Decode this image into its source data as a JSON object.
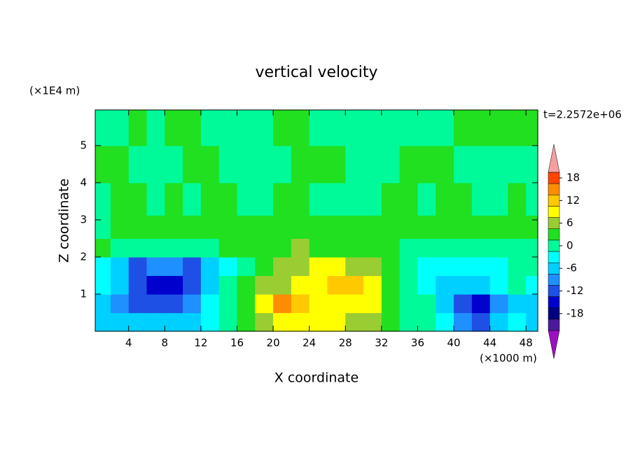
{
  "chart_data": {
    "type": "contourf",
    "title": "vertical velocity",
    "xlabel": "X coordinate",
    "ylabel": "Z coordinate",
    "x_unit": "(×1000 m)",
    "y_unit": "(×1E4 m)",
    "annotation": "t=2.2572e+06",
    "xlim": [
      0.3,
      49.3
    ],
    "ylim": [
      0,
      5.96
    ],
    "xticks": [
      4,
      8,
      12,
      16,
      20,
      24,
      28,
      32,
      36,
      40,
      44,
      48
    ],
    "yticks": [
      1,
      2,
      3,
      4,
      5
    ],
    "x": [
      1,
      3,
      5,
      7,
      9,
      11,
      13,
      15,
      17,
      19,
      21,
      23,
      25,
      27,
      29,
      31,
      33,
      35,
      37,
      39,
      41,
      43,
      45,
      47,
      49
    ],
    "y": [
      0.25,
      0.75,
      1.25,
      1.75,
      2.25,
      2.75,
      3.5,
      4.5,
      5.5
    ],
    "values": [
      [
        -4,
        -5,
        -6,
        -6,
        -5,
        -4,
        -2,
        1,
        4,
        7,
        10,
        11,
        9,
        9,
        8,
        6,
        3,
        1,
        0,
        -3,
        -7,
        -10,
        -6,
        -3,
        -4
      ],
      [
        -6,
        -8,
        -10,
        -11,
        -10,
        -7,
        -3,
        1,
        5,
        9,
        15,
        12,
        10,
        10,
        11,
        9,
        5,
        2,
        0,
        -4,
        -10,
        -14,
        -8,
        -4,
        -4
      ],
      [
        -3,
        -6,
        -10,
        -13,
        -13,
        -10,
        -4,
        0,
        3,
        6,
        8,
        10,
        11,
        12,
        13,
        10,
        5,
        1,
        -1,
        -4,
        -5,
        -4,
        -2,
        1,
        -2
      ],
      [
        -1,
        -4,
        -11,
        -7,
        -8,
        -10,
        -6,
        -1,
        2,
        4,
        6,
        8,
        9,
        9,
        8,
        6,
        3,
        1,
        -1,
        -3,
        -2,
        -3,
        -1,
        2,
        1
      ],
      [
        4,
        1,
        0,
        2,
        1,
        1,
        2,
        3,
        4,
        4,
        5,
        6,
        5,
        5,
        5,
        4,
        3,
        2,
        1,
        1,
        2,
        1,
        2,
        1,
        1
      ],
      [
        2,
        4,
        4,
        3,
        4,
        3,
        4,
        4,
        3,
        4,
        4,
        3,
        4,
        3,
        4,
        3,
        4,
        4,
        3,
        4,
        3,
        4,
        3,
        4,
        3
      ],
      [
        2,
        3,
        4,
        2,
        4,
        2,
        3,
        4,
        2,
        2,
        4,
        3,
        2,
        2,
        2,
        2,
        4,
        3,
        2,
        4,
        3,
        2,
        2,
        3,
        2
      ],
      [
        4,
        4,
        2,
        2,
        2,
        3,
        4,
        2,
        2,
        1,
        2,
        4,
        4,
        4,
        2,
        1,
        2,
        4,
        4,
        4,
        2,
        2,
        2,
        2,
        2
      ],
      [
        2,
        2,
        3,
        2,
        4,
        4,
        2,
        2,
        2,
        2,
        4,
        4,
        2,
        2,
        2,
        2,
        2,
        2,
        2,
        2,
        4,
        4,
        4,
        4,
        3
      ]
    ],
    "levels": [
      -21,
      -18,
      -15,
      -12,
      -9,
      -6,
      -3,
      0,
      3,
      6,
      9,
      12,
      15,
      18,
      21
    ],
    "colors": [
      "#9a10c0",
      "#4b1a9a",
      "#000080",
      "#0000cd",
      "#1e50e6",
      "#1e90ff",
      "#00d0ff",
      "#00ffff",
      "#00fa9a",
      "#20e020",
      "#9acd32",
      "#ffff00",
      "#ffc800",
      "#ff8c00",
      "#ff4500",
      "#f4a0a0"
    ],
    "colorbar_ticks": [
      -18,
      -12,
      -6,
      0,
      6,
      12,
      18
    ]
  }
}
